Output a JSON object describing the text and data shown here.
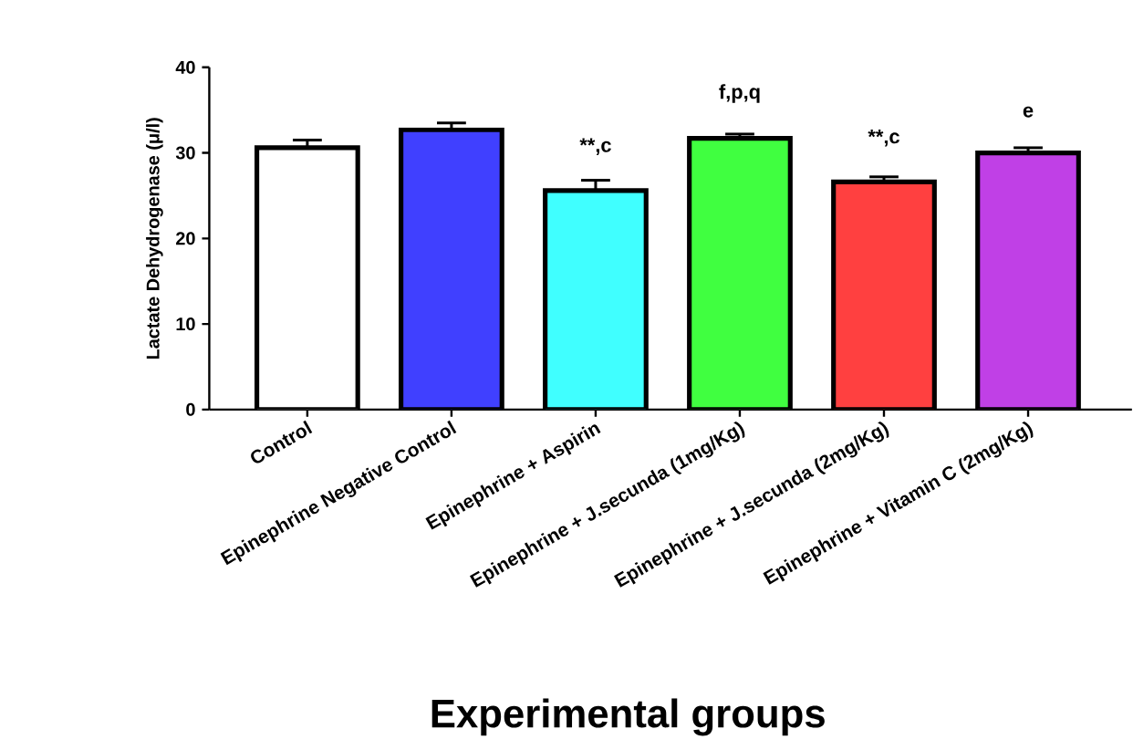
{
  "chart_data": {
    "type": "bar",
    "ylabel": "Lactate Dehydrogenase (μ/l)",
    "xlabel": "Experimental groups",
    "categories": [
      "Control",
      "Epinephrine Negative Control",
      "Epinephrine + Aspirin",
      "Epinephrine + J.secunda (1mg/Kg)",
      "Epinephrine + J.secunda (2mg/Kg)",
      "Epinephrine + Vitamin C (2mg/Kg)"
    ],
    "values": [
      30.6,
      32.7,
      25.6,
      31.7,
      26.6,
      30.0
    ],
    "errors": [
      0.9,
      0.8,
      1.2,
      0.5,
      0.6,
      0.6
    ],
    "colors": [
      "#ffffff",
      "#4040ff",
      "#40ffff",
      "#40ff40",
      "#ff4040",
      "#c040e6"
    ],
    "ylim": [
      0,
      40
    ],
    "yticks": [
      0,
      10,
      20,
      30,
      40
    ],
    "annotations": [
      {
        "text": "**,c",
        "x": "Epinephrine + Aspirin",
        "y": 25.6
      },
      {
        "text": "f,p,q",
        "x": "Epinephrine + J.secunda (1mg/Kg)",
        "y": 31.7
      },
      {
        "text": "**,c",
        "x": "Epinephrine + J.secunda (2mg/Kg)",
        "y": 26.6
      },
      {
        "text": "e",
        "x": "Epinephrine + Vitamin C (2mg/Kg)",
        "y": 30.0
      }
    ]
  }
}
